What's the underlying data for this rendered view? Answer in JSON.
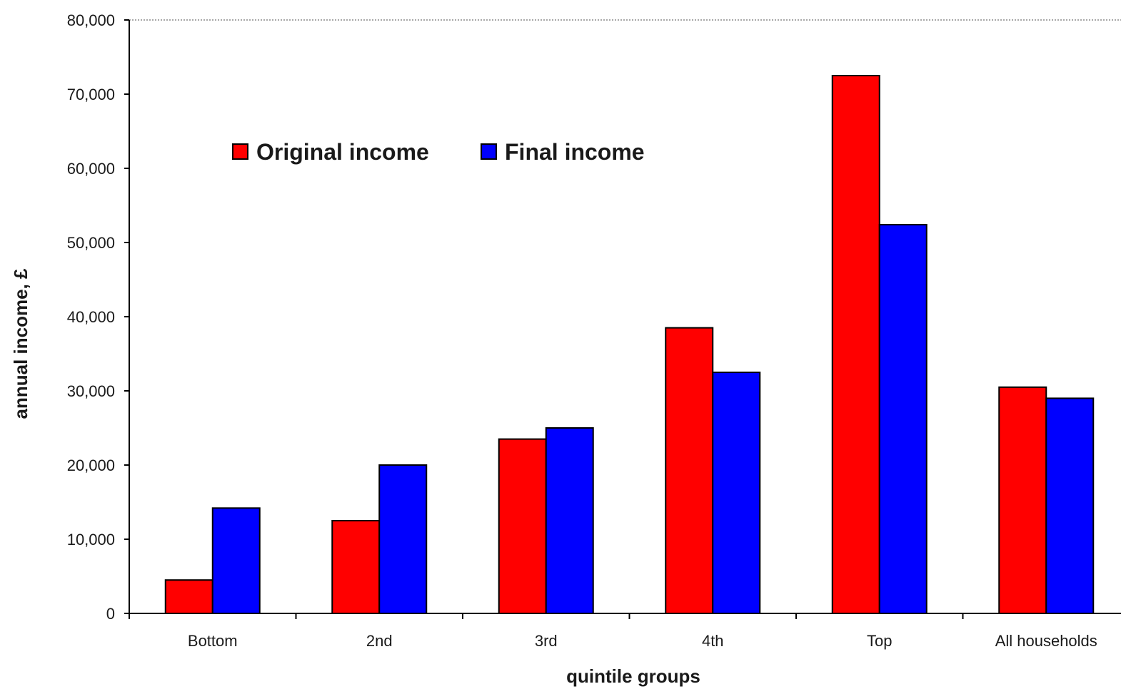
{
  "chart_data": {
    "type": "bar",
    "categories": [
      "Bottom",
      "2nd",
      "3rd",
      "4th",
      "Top",
      "All households"
    ],
    "series": [
      {
        "name": "Original income",
        "color": "#ff0000",
        "values": [
          4500,
          12500,
          23500,
          38500,
          72500,
          30500
        ]
      },
      {
        "name": "Final income",
        "color": "#0000ff",
        "values": [
          14200,
          20000,
          25000,
          32500,
          52400,
          29000
        ]
      }
    ],
    "xlabel": "quintile groups",
    "ylabel": "annual income, £",
    "ylim": [
      0,
      80000
    ],
    "yticks": [
      0,
      10000,
      20000,
      30000,
      40000,
      50000,
      60000,
      70000,
      80000
    ],
    "ytick_labels": [
      "0",
      "10,000",
      "20,000",
      "30,000",
      "40,000",
      "50,000",
      "60,000",
      "70,000",
      "80,000"
    ],
    "legend_position": "top-left",
    "grid": false
  }
}
